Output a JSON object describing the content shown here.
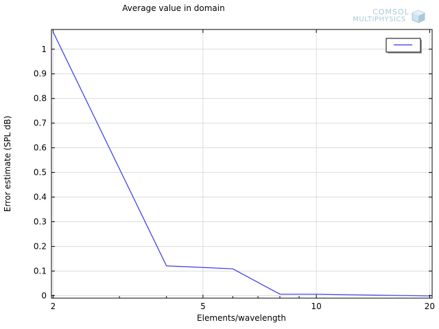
{
  "chart_data": {
    "type": "line",
    "title": "Average value in domain",
    "xlabel": "Elements/wavelength",
    "ylabel": "Error estimate (SPL dB)",
    "x_scale": "log",
    "xlim": [
      1.98,
      20.3
    ],
    "ylim": [
      -0.01,
      1.08
    ],
    "x_ticks": [
      2,
      5,
      10,
      20
    ],
    "y_ticks": [
      0,
      0.1,
      0.2,
      0.3,
      0.4,
      0.5,
      0.6,
      0.7,
      0.8,
      0.9,
      1
    ],
    "grid": true,
    "legend_placement": "top-right",
    "series": [
      {
        "color": "#3333ee",
        "x": [
          2,
          4,
          6,
          8,
          10,
          20
        ],
        "y": [
          1.07,
          0.121,
          0.109,
          0.006,
          0.006,
          -0.001
        ]
      }
    ]
  },
  "logo": {
    "line1": "COMSOL",
    "line2": "MULTIPHYSICS",
    "color": "#a8c8d8",
    "name": "comsol-logo"
  }
}
